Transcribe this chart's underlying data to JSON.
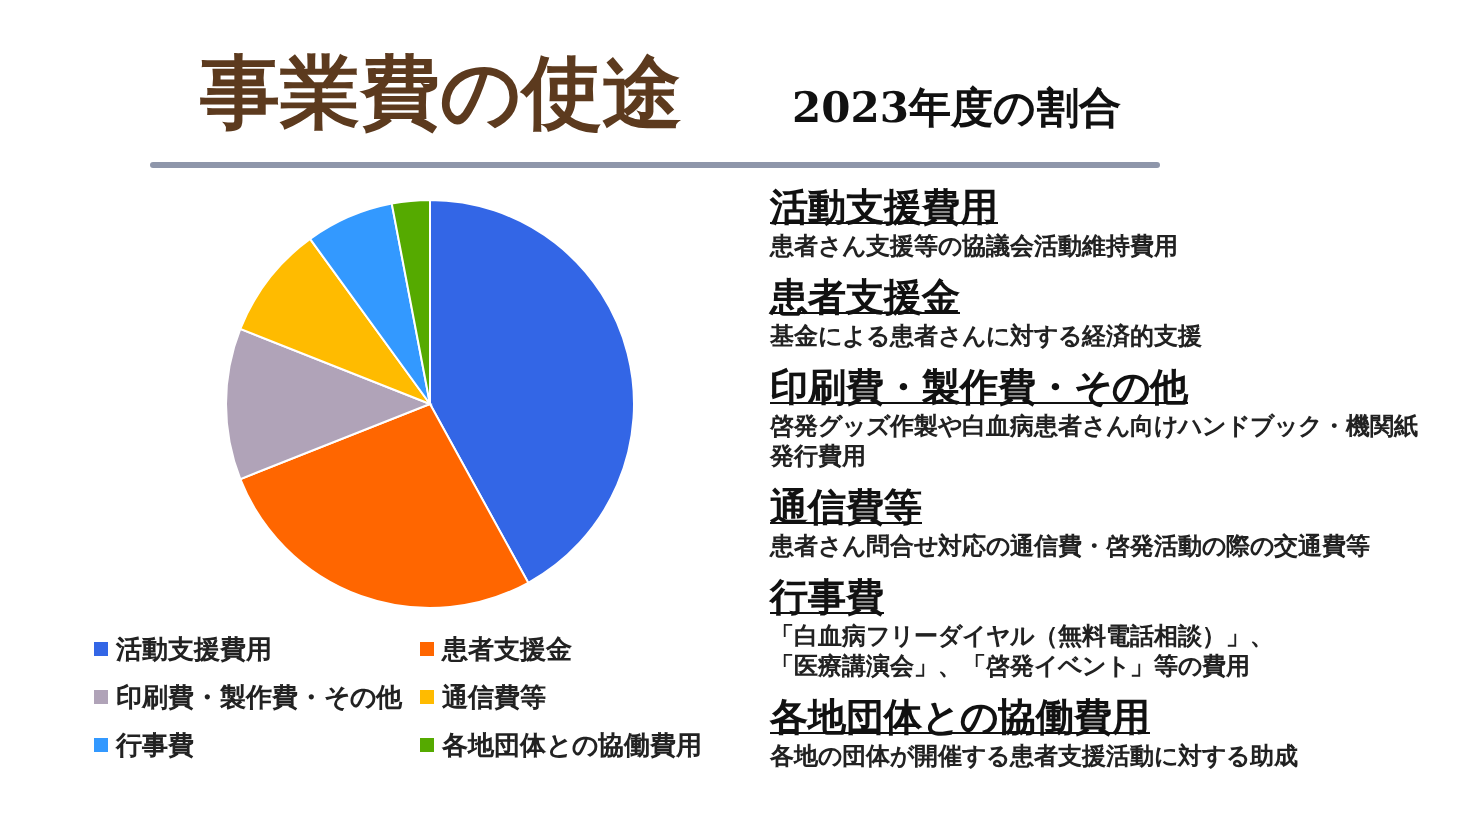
{
  "chart_data": {
    "type": "pie",
    "title": "事業費の使途",
    "subtitle": "2023年度の割合",
    "categories": [
      "活動支援費用",
      "患者支援金",
      "印刷費・製作費・その他",
      "通信費等",
      "行事費",
      "各地団体との協働費用"
    ],
    "values": [
      42,
      27,
      12,
      9,
      7,
      3
    ],
    "colors": [
      "#3366e6",
      "#ff6600",
      "#b0a3b8",
      "#ffbb00",
      "#3399ff",
      "#55aa00"
    ],
    "legend": "bottom",
    "annotations": [
      "患者さん支援等の協議会活動維持費用",
      "基金による患者さんに対する経済的支援",
      "啓発グッズ作製や白血病患者さん向けハンドブック・機関紙発行費用",
      "患者さん問合せ対応の通信費・啓発活動の際の交通費等",
      "「白血病フリーダイヤル（無料電話相談）」、「医療講演会」、「啓発イベント」等の費用",
      "各地の団体が開催する患者支援活動に対する助成"
    ]
  }
}
